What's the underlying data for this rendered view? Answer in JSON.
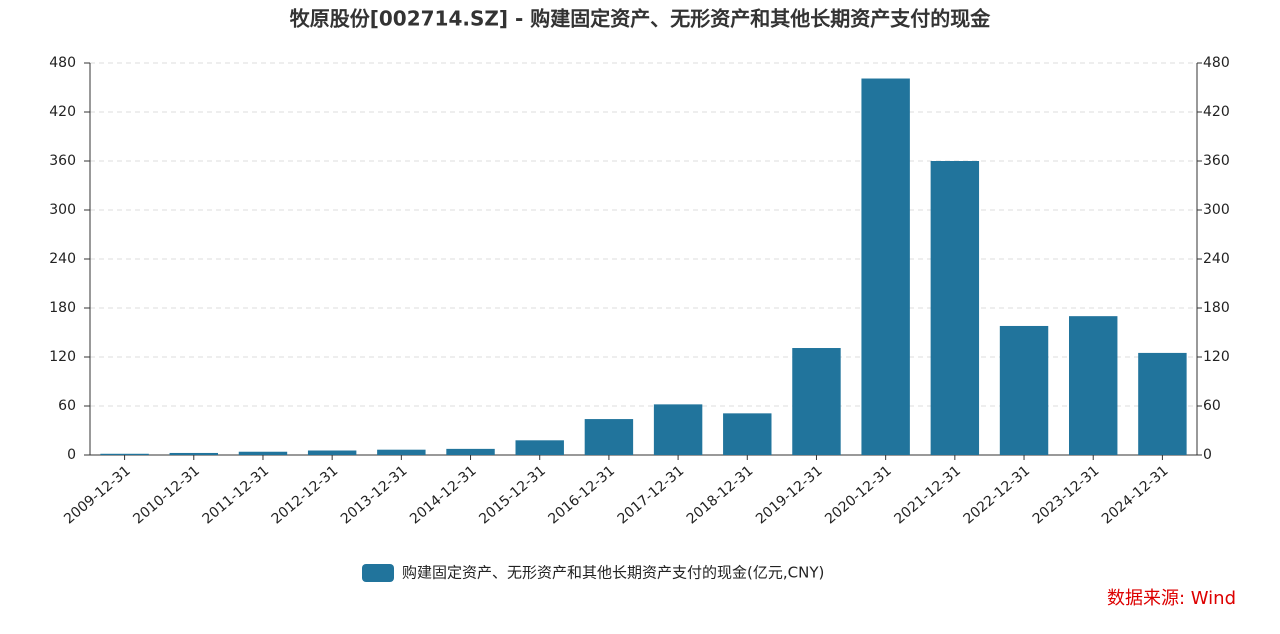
{
  "chart_data": {
    "type": "bar",
    "title": "牧原股份[002714.SZ] - 购建固定资产、无形资产和其他长期资产支付的现金",
    "categories": [
      "2009-12-31",
      "2010-12-31",
      "2011-12-31",
      "2012-12-31",
      "2013-12-31",
      "2014-12-31",
      "2015-12-31",
      "2016-12-31",
      "2017-12-31",
      "2018-12-31",
      "2019-12-31",
      "2020-12-31",
      "2021-12-31",
      "2022-12-31",
      "2023-12-31",
      "2024-12-31"
    ],
    "series": [
      {
        "name": "购建固定资产、无形资产和其他长期资产支付的现金(亿元,CNY)",
        "color": "#21749c",
        "values": [
          1.5,
          2.5,
          4,
          5.5,
          6.5,
          7.5,
          18,
          44,
          62,
          51,
          131,
          461,
          360,
          158,
          170,
          125
        ]
      }
    ],
    "ylim": [
      0,
      480
    ],
    "yticks": [
      0,
      60,
      120,
      180,
      240,
      300,
      360,
      420,
      480
    ],
    "y2lim": [
      0,
      480
    ],
    "y2ticks": [
      0,
      60,
      120,
      180,
      240,
      300,
      360,
      420,
      480
    ],
    "grid": true,
    "legend": "bottom",
    "source": "数据来源: Wind"
  }
}
